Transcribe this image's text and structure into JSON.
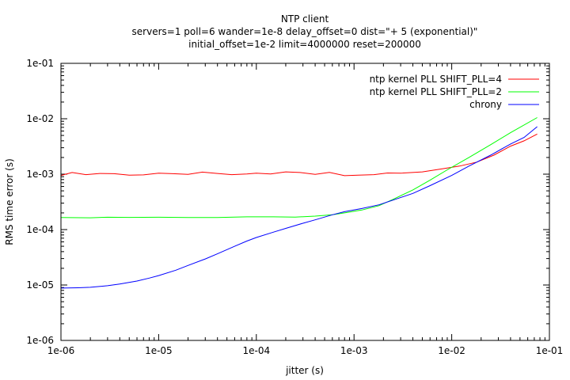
{
  "chart_data": {
    "type": "line",
    "title_lines": [
      "NTP client",
      "servers=1 poll=6 wander=1e-8 delay_offset=0 dist=\"+ 5 (exponential)\"",
      "initial_offset=1e-2 limit=4000000 reset=200000"
    ],
    "xlabel": "jitter (s)",
    "ylabel": "RMS time error (s)",
    "x_scale": "log",
    "y_scale": "log",
    "xlim": [
      1e-06,
      0.1
    ],
    "ylim": [
      1e-06,
      0.1
    ],
    "x_ticks": [
      {
        "value": 1e-06,
        "label": "1e-06"
      },
      {
        "value": 1e-05,
        "label": "1e-05"
      },
      {
        "value": 0.0001,
        "label": "1e-04"
      },
      {
        "value": 0.001,
        "label": "1e-03"
      },
      {
        "value": 0.01,
        "label": "1e-02"
      },
      {
        "value": 0.1,
        "label": "1e-01"
      }
    ],
    "y_ticks": [
      {
        "value": 1e-06,
        "label": "1e-06"
      },
      {
        "value": 1e-05,
        "label": "1e-05"
      },
      {
        "value": 0.0001,
        "label": "1e-04"
      },
      {
        "value": 0.001,
        "label": "1e-03"
      },
      {
        "value": 0.01,
        "label": "1e-02"
      },
      {
        "value": 0.1,
        "label": "1e-01"
      }
    ],
    "grid": false,
    "legend_position": "top-right",
    "series": [
      {
        "name": "ntp kernel PLL SHIFT_PLL=4",
        "color": "#ff0000",
        "points": [
          [
            1e-06,
            0.00095
          ],
          [
            1.3e-06,
            0.00107
          ],
          [
            1.8e-06,
            0.00098
          ],
          [
            2.5e-06,
            0.00103
          ],
          [
            3.5e-06,
            0.00102
          ],
          [
            5e-06,
            0.00096
          ],
          [
            7e-06,
            0.00097
          ],
          [
            1e-05,
            0.00104
          ],
          [
            1.4e-05,
            0.00102
          ],
          [
            2e-05,
            0.00099
          ],
          [
            2.8e-05,
            0.00109
          ],
          [
            4e-05,
            0.00103
          ],
          [
            5.6e-05,
            0.00098
          ],
          [
            8e-05,
            0.00101
          ],
          [
            0.0001,
            0.00104
          ],
          [
            0.00014,
            0.00101
          ],
          [
            0.0002,
            0.0011
          ],
          [
            0.00028,
            0.00107
          ],
          [
            0.0004,
            0.00099
          ],
          [
            0.00056,
            0.00108
          ],
          [
            0.0008,
            0.00094
          ],
          [
            0.0011,
            0.00096
          ],
          [
            0.0016,
            0.00098
          ],
          [
            0.0022,
            0.00105
          ],
          [
            0.003,
            0.00104
          ],
          [
            0.005,
            0.0011
          ],
          [
            0.008,
            0.00125
          ],
          [
            0.012,
            0.0014
          ],
          [
            0.018,
            0.00165
          ],
          [
            0.027,
            0.0022
          ],
          [
            0.04,
            0.0032
          ],
          [
            0.055,
            0.004
          ],
          [
            0.075,
            0.0053
          ]
        ]
      },
      {
        "name": "ntp kernel PLL SHIFT_PLL=2",
        "color": "#00ff00",
        "points": [
          [
            1e-06,
            0.000165
          ],
          [
            2e-06,
            0.000163
          ],
          [
            3e-06,
            0.000167
          ],
          [
            5e-06,
            0.000166
          ],
          [
            1e-05,
            0.000167
          ],
          [
            2e-05,
            0.000165
          ],
          [
            4e-05,
            0.000165
          ],
          [
            8e-05,
            0.00017
          ],
          [
            0.00015,
            0.00017
          ],
          [
            0.00025,
            0.000168
          ],
          [
            0.0004,
            0.000175
          ],
          [
            0.0006,
            0.000185
          ],
          [
            0.0008,
            0.0002
          ],
          [
            0.0012,
            0.000225
          ],
          [
            0.0018,
            0.00027
          ],
          [
            0.0025,
            0.00035
          ],
          [
            0.004,
            0.00052
          ],
          [
            0.006,
            0.00078
          ],
          [
            0.009,
            0.0012
          ],
          [
            0.015,
            0.002
          ],
          [
            0.025,
            0.0034
          ],
          [
            0.04,
            0.0056
          ],
          [
            0.075,
            0.0105
          ]
        ]
      },
      {
        "name": "chrony",
        "color": "#0000ff",
        "points": [
          [
            1e-06,
            8.8e-06
          ],
          [
            1.5e-06,
            8.9e-06
          ],
          [
            2e-06,
            9.1e-06
          ],
          [
            3e-06,
            9.7e-06
          ],
          [
            4e-06,
            1.04e-05
          ],
          [
            6e-06,
            1.18e-05
          ],
          [
            8e-06,
            1.33e-05
          ],
          [
            1e-05,
            1.48e-05
          ],
          [
            1.5e-05,
            1.85e-05
          ],
          [
            2e-05,
            2.25e-05
          ],
          [
            3e-05,
            2.95e-05
          ],
          [
            4e-05,
            3.65e-05
          ],
          [
            6e-05,
            5e-05
          ],
          [
            8e-05,
            6.2e-05
          ],
          [
            0.0001,
            7.2e-05
          ],
          [
            0.00015,
            9e-05
          ],
          [
            0.0002,
            0.000105
          ],
          [
            0.0003,
            0.00013
          ],
          [
            0.0004,
            0.00015
          ],
          [
            0.0006,
            0.000185
          ],
          [
            0.0008,
            0.00021
          ],
          [
            0.0012,
            0.00024
          ],
          [
            0.0018,
            0.00028
          ],
          [
            0.0025,
            0.00034
          ],
          [
            0.004,
            0.00045
          ],
          [
            0.006,
            0.00062
          ],
          [
            0.01,
            0.00095
          ],
          [
            0.015,
            0.0014
          ],
          [
            0.025,
            0.0022
          ],
          [
            0.04,
            0.0035
          ],
          [
            0.055,
            0.0046
          ],
          [
            0.075,
            0.0072
          ]
        ]
      }
    ]
  }
}
